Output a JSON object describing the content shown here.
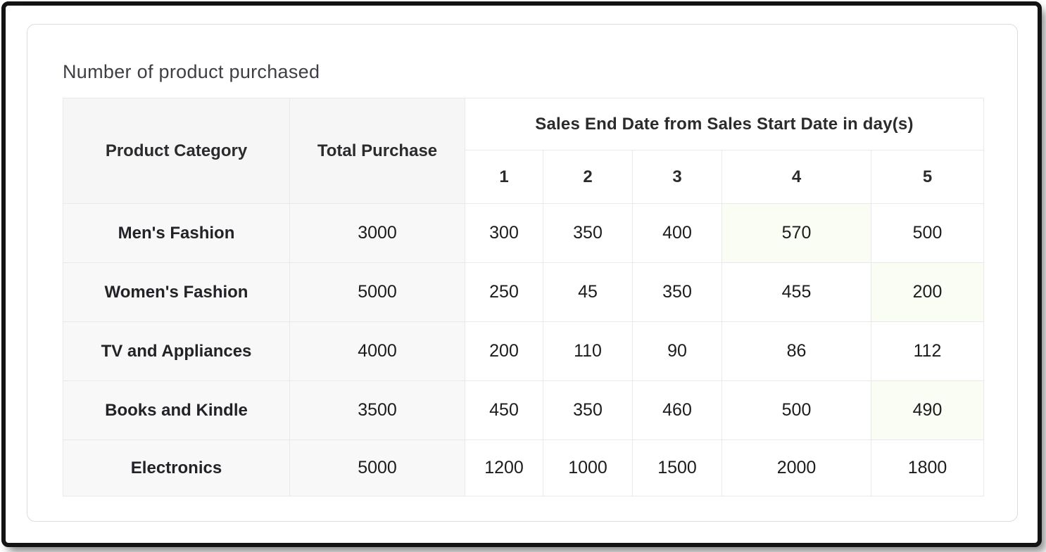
{
  "chart_data": {
    "type": "table",
    "title": "Number of product purchased",
    "column_group_header": "Sales End Date from Sales Start Date in day(s)",
    "columns": [
      "Product Category",
      "Total Purchase",
      "1",
      "2",
      "3",
      "4",
      "5"
    ],
    "rows": [
      [
        "Men's Fashion",
        3000,
        300,
        350,
        400,
        570,
        500
      ],
      [
        "Women's Fashion",
        5000,
        250,
        45,
        350,
        455,
        200
      ],
      [
        "TV and Appliances",
        4000,
        200,
        110,
        90,
        86,
        112
      ],
      [
        "Books and Kindle",
        3500,
        450,
        350,
        460,
        500,
        490
      ],
      [
        "Electronics",
        5000,
        1200,
        1000,
        1500,
        2000,
        1800
      ]
    ],
    "highlighted_cells": [
      {
        "row": "Men's Fashion",
        "day": "4",
        "value": 570
      },
      {
        "row": "Women's Fashion",
        "day": "5",
        "value": 200
      },
      {
        "row": "Books and Kindle",
        "day": "5",
        "value": 490
      }
    ],
    "layout_hints": {
      "label_columns_bg": "#f6f6f6",
      "value_columns_bg": "#ffffff",
      "highlight_bg": "#fafdf3",
      "grid_border": "#e9e9e9",
      "card_border": "#dcdcdc",
      "outer_frame": "#131313"
    }
  }
}
